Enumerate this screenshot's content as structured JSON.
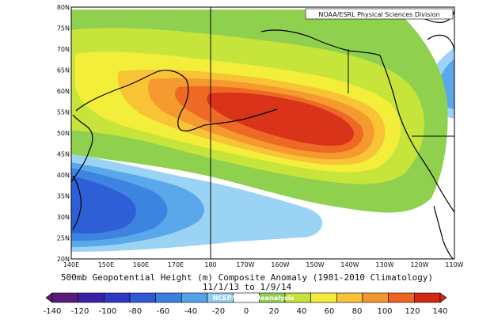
{
  "map": {
    "credit": "NOAA/ESRL Physical Sciences Division",
    "lat_labels": [
      "80N",
      "75N",
      "70N",
      "65N",
      "60N",
      "55N",
      "50N",
      "45N",
      "40N",
      "35N",
      "30N",
      "25N",
      "20N"
    ],
    "lon_labels": [
      "140E",
      "150E",
      "160E",
      "170E",
      "180",
      "170W",
      "160W",
      "150W",
      "140W",
      "130W",
      "120W",
      "110W"
    ],
    "lat_range": [
      20,
      80
    ],
    "lon_range_east": [
      140,
      250
    ],
    "colors": {
      "neg_140": "#3b0f70",
      "neg_120": "#4a1fa0",
      "neg_100": "#3a37c8",
      "neg_80": "#2f5fd6",
      "neg_60": "#3d84e0",
      "neg_40": "#5aa8ea",
      "neg_20": "#9bd3f5",
      "zero": "#ffffff",
      "pos_20": "#8fd14f",
      "pos_40": "#c6e43a",
      "pos_60": "#f2ee3a",
      "pos_80": "#f9c336",
      "pos_100": "#f49a2e",
      "pos_120": "#ee6a24",
      "pos_140": "#d9331a"
    }
  },
  "title": {
    "line1": "500mb Geopotential Height (m) Composite Anomaly (1981-2010 Climatology)",
    "line2": "11/1/13  to 1/9/14"
  },
  "colorbar": {
    "credit": "NCEP/NCAR Reanalysis",
    "labels": [
      "-140",
      "-120",
      "-100",
      "-80",
      "-60",
      "-40",
      "-20",
      "0",
      "20",
      "40",
      "60",
      "80",
      "100",
      "120",
      "140"
    ],
    "colors": [
      "#5a1a7a",
      "#3b1fa6",
      "#3137c6",
      "#2d59d5",
      "#3a7ee0",
      "#55a2ea",
      "#92cdf4",
      "#ffffff",
      "#8ed24e",
      "#c5e33a",
      "#f1ec3a",
      "#f8c137",
      "#f3962d",
      "#ec6322",
      "#d02a14"
    ]
  }
}
